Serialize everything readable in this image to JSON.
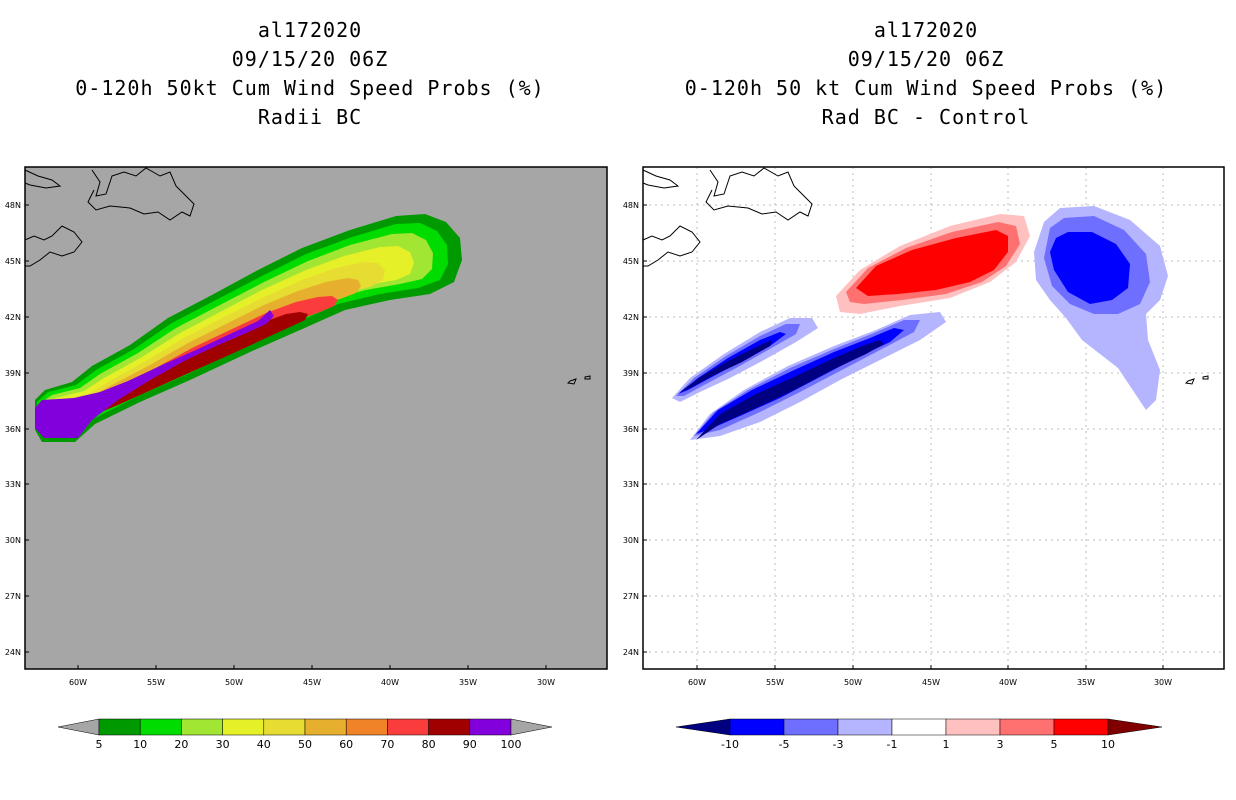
{
  "left_panel": {
    "title_lines": [
      "al172020",
      "09/15/20 06Z",
      "0-120h 50kt Cum Wind Speed Probs (%)",
      "Radii BC"
    ],
    "lat_labels": [
      "48N",
      "45N",
      "42N",
      "39N",
      "36N",
      "33N",
      "30N",
      "27N",
      "24N"
    ],
    "lon_labels": [
      "60W",
      "55W",
      "50W",
      "45W",
      "40W",
      "35W",
      "30W"
    ],
    "colorbar": {
      "labels": [
        "5",
        "10",
        "20",
        "30",
        "40",
        "50",
        "60",
        "70",
        "80",
        "90",
        "100"
      ],
      "colors": [
        "#a6a6a6",
        "#009a00",
        "#00dc00",
        "#a0e632",
        "#e6f028",
        "#e6dc32",
        "#e6af2d",
        "#f08228",
        "#fa3c3c",
        "#a00000",
        "#8200dc",
        "#a6a6a6"
      ]
    },
    "background_color": "#a6a6a6"
  },
  "right_panel": {
    "title_lines": [
      "al172020",
      "09/15/20 06Z",
      "0-120h 50 kt Cum Wind Speed Probs (%)",
      "Rad BC - Control"
    ],
    "lat_labels": [
      "48N",
      "45N",
      "42N",
      "39N",
      "36N",
      "33N",
      "30N",
      "27N",
      "24N"
    ],
    "lon_labels": [
      "60W",
      "55W",
      "50W",
      "45W",
      "40W",
      "35W",
      "30W"
    ],
    "colorbar": {
      "labels": [
        "-10",
        "-5",
        "-3",
        "-1",
        "1",
        "3",
        "5",
        "10"
      ],
      "colors": [
        "#000080",
        "#0000ff",
        "#6e6eff",
        "#b4b4ff",
        "#ffffff",
        "#ffc0c0",
        "#ff7070",
        "#ff0000",
        "#800000"
      ]
    },
    "background_color": "#ffffff"
  }
}
